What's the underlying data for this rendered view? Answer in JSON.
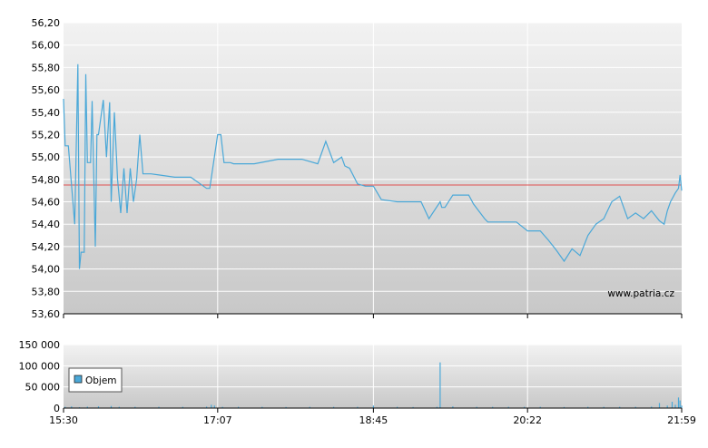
{
  "watermark": "www.patria.cz",
  "chart_data": [
    {
      "type": "line",
      "series": [
        {
          "color": "#4aa8d8",
          "x": [
            "15:30",
            "15:31",
            "15:33",
            "15:37",
            "15:39",
            "15:40",
            "15:41",
            "15:43",
            "15:44",
            "15:45",
            "15:47",
            "15:48",
            "15:50",
            "15:51",
            "15:52",
            "15:55",
            "15:57",
            "15:59",
            "16:00",
            "16:02",
            "16:04",
            "16:06",
            "16:08",
            "16:10",
            "16:12",
            "16:14",
            "16:16",
            "16:18",
            "16:20",
            "16:25",
            "16:30",
            "16:40",
            "16:50",
            "17:00",
            "17:02",
            "17:07",
            "17:09",
            "17:11",
            "17:15",
            "17:17",
            "17:30",
            "17:45",
            "18:00",
            "18:10",
            "18:15",
            "18:20",
            "18:25",
            "18:27",
            "18:30",
            "18:35",
            "18:40",
            "18:45",
            "18:50",
            "19:00",
            "19:05",
            "19:15",
            "19:20",
            "19:27",
            "19:28",
            "19:30",
            "19:35",
            "19:45",
            "19:48",
            "19:55",
            "19:57",
            "20:00",
            "20:05",
            "20:15",
            "20:22",
            "20:25",
            "20:30",
            "20:35",
            "20:40",
            "20:45",
            "20:50",
            "20:55",
            "21:00",
            "21:05",
            "21:10",
            "21:15",
            "21:20",
            "21:25",
            "21:30",
            "21:35",
            "21:40",
            "21:45",
            "21:48",
            "21:50",
            "21:52",
            "21:55",
            "21:57",
            "21:58",
            "21:59"
          ],
          "y": [
            55.52,
            55.1,
            55.1,
            54.4,
            55.83,
            54.0,
            54.15,
            54.15,
            55.74,
            54.95,
            54.95,
            55.5,
            54.2,
            55.2,
            55.2,
            55.51,
            55.0,
            55.49,
            54.6,
            55.4,
            54.8,
            54.5,
            54.9,
            54.5,
            54.9,
            54.6,
            54.8,
            55.2,
            54.85,
            54.85,
            54.84,
            54.82,
            54.82,
            54.72,
            54.72,
            55.2,
            55.2,
            54.95,
            54.95,
            54.94,
            54.94,
            54.98,
            54.98,
            54.94,
            55.14,
            54.95,
            55.0,
            54.92,
            54.9,
            54.76,
            54.74,
            54.74,
            54.62,
            54.6,
            54.6,
            54.6,
            54.45,
            54.6,
            54.55,
            54.55,
            54.66,
            54.66,
            54.58,
            54.45,
            54.42,
            54.42,
            54.42,
            54.42,
            54.34,
            54.34,
            54.34,
            54.26,
            54.17,
            54.07,
            54.18,
            54.12,
            54.3,
            54.4,
            54.45,
            54.6,
            54.65,
            54.45,
            54.5,
            54.45,
            54.52,
            54.43,
            54.4,
            54.52,
            54.6,
            54.68,
            54.72,
            54.84,
            54.7
          ]
        }
      ],
      "reference_line": {
        "value": 54.75,
        "color": "#e05050"
      },
      "ylim": [
        53.6,
        56.2
      ],
      "yticks": [
        "53,60",
        "53,80",
        "54,00",
        "54,20",
        "54,40",
        "54,60",
        "54,80",
        "55,00",
        "55,20",
        "55,40",
        "55,60",
        "55,80",
        "56,00",
        "56,20"
      ],
      "xticks": [
        "15:30",
        "17:07",
        "18:45",
        "20:22",
        "21:59"
      ],
      "grid": true
    },
    {
      "type": "bar",
      "legend": {
        "label": "Objem",
        "color": "#4aa8d8"
      },
      "ylim": [
        0,
        150000
      ],
      "yticks": [
        "0",
        "50 000",
        "100 000",
        "150 000"
      ],
      "xticks": [
        "15:30",
        "17:07",
        "18:45",
        "20:22",
        "21:59"
      ],
      "grid": true,
      "series": [
        {
          "name": "Objem",
          "color": "#4aa8d8",
          "x": [
            "15:31",
            "15:35",
            "15:40",
            "15:45",
            "15:52",
            "16:00",
            "16:05",
            "16:15",
            "16:30",
            "16:45",
            "17:00",
            "17:03",
            "17:05",
            "17:10",
            "17:20",
            "17:35",
            "17:50",
            "18:05",
            "18:20",
            "18:35",
            "18:45",
            "19:00",
            "19:10",
            "19:25",
            "19:27",
            "19:35",
            "19:50",
            "20:00",
            "20:10",
            "20:20",
            "20:30",
            "20:45",
            "21:00",
            "21:10",
            "21:20",
            "21:30",
            "21:40",
            "21:45",
            "21:50",
            "21:53",
            "21:55",
            "21:57",
            "21:58",
            "21:59"
          ],
          "values": [
            3000,
            4000,
            2000,
            3500,
            4000,
            5000,
            3000,
            3000,
            3000,
            3000,
            3500,
            8000,
            6000,
            3000,
            3000,
            3000,
            2500,
            3000,
            3000,
            3000,
            6000,
            3000,
            2500,
            3000,
            108000,
            4000,
            3000,
            3000,
            3000,
            3000,
            3000,
            2500,
            3000,
            3000,
            3000,
            3000,
            3500,
            12000,
            6000,
            15000,
            8000,
            25000,
            18000,
            6000
          ]
        }
      ]
    }
  ]
}
